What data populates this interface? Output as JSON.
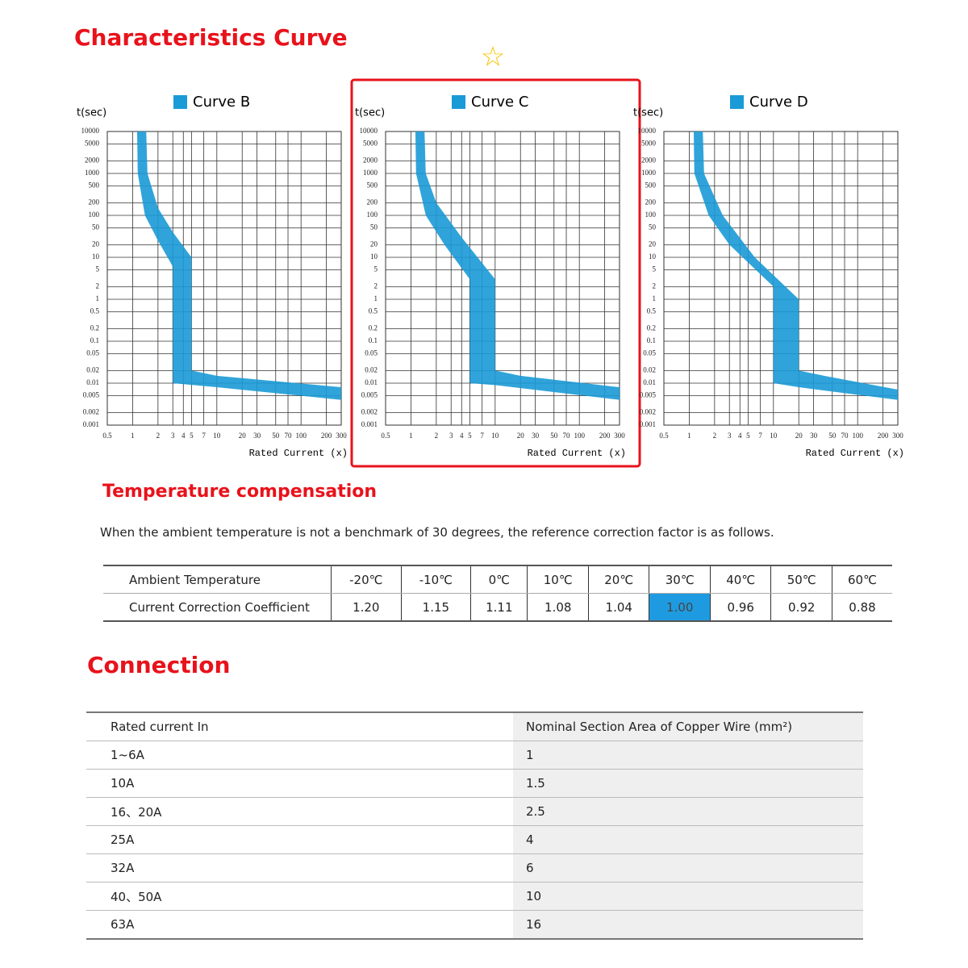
{
  "curves_section": {
    "title": "Characteristics Curve",
    "charts": [
      {
        "type": "area",
        "legend": "Curve B",
        "color": "#1a9ad6",
        "y_label": "t(sec)",
        "x_label": "Rated Current (x)",
        "log_x": true,
        "log_y": true,
        "highlighted": false,
        "xlim": [
          0.5,
          300
        ],
        "ylim": [
          0.001,
          10000
        ],
        "xticks": [
          0.5,
          1,
          2,
          3,
          4,
          5,
          7,
          10,
          20,
          30,
          50,
          70,
          100,
          200,
          300
        ],
        "yticks": [
          10000,
          5000,
          2000,
          1000,
          500,
          200,
          100,
          50,
          20,
          10,
          5,
          2,
          1,
          0.5,
          0.2,
          0.1,
          0.05,
          0.02,
          0.01,
          0.005,
          0.002,
          0.001
        ],
        "lower_edge": {
          "x": [
            1.13,
            1.15,
            1.4,
            2,
            3,
            3,
            10,
            300
          ],
          "t": [
            10000,
            1000,
            100,
            25,
            6,
            0.01,
            0.008,
            0.004
          ]
        },
        "upper_edge": {
          "x": [
            1.45,
            1.5,
            2,
            3,
            5,
            5,
            10,
            300
          ],
          "t": [
            10000,
            1000,
            150,
            40,
            10,
            0.02,
            0.015,
            0.008
          ]
        }
      },
      {
        "type": "area",
        "legend": "Curve C",
        "color": "#1a9ad6",
        "y_label": "t(sec)",
        "x_label": "Rated Current (x)",
        "log_x": true,
        "log_y": true,
        "highlighted": true,
        "xlim": [
          0.5,
          300
        ],
        "ylim": [
          0.001,
          10000
        ],
        "xticks": [
          0.5,
          1,
          2,
          3,
          4,
          5,
          7,
          10,
          20,
          30,
          50,
          70,
          100,
          200,
          300
        ],
        "yticks": [
          10000,
          5000,
          2000,
          1000,
          500,
          200,
          100,
          50,
          20,
          10,
          5,
          2,
          1,
          0.5,
          0.2,
          0.1,
          0.05,
          0.02,
          0.01,
          0.005,
          0.002,
          0.001
        ],
        "lower_edge": {
          "x": [
            1.13,
            1.15,
            1.5,
            2.5,
            5,
            5,
            10,
            300
          ],
          "t": [
            10000,
            1000,
            100,
            20,
            3,
            0.01,
            0.009,
            0.004
          ]
        },
        "upper_edge": {
          "x": [
            1.45,
            1.5,
            2,
            4,
            10,
            10,
            20,
            300
          ],
          "t": [
            10000,
            1000,
            200,
            30,
            3,
            0.02,
            0.015,
            0.008
          ]
        }
      },
      {
        "type": "area",
        "legend": "Curve D",
        "color": "#1a9ad6",
        "y_label": "t(sec)",
        "x_label": "Rated Current (x)",
        "log_x": true,
        "log_y": true,
        "highlighted": false,
        "xlim": [
          0.5,
          300
        ],
        "ylim": [
          0.001,
          10000
        ],
        "xticks": [
          0.5,
          1,
          2,
          3,
          4,
          5,
          7,
          10,
          20,
          30,
          50,
          70,
          100,
          200,
          300
        ],
        "yticks": [
          10000,
          5000,
          2000,
          1000,
          500,
          200,
          100,
          50,
          20,
          10,
          5,
          2,
          1,
          0.5,
          0.2,
          0.1,
          0.05,
          0.02,
          0.01,
          0.005,
          0.002,
          0.001
        ],
        "lower_edge": {
          "x": [
            1.13,
            1.15,
            1.7,
            3,
            10,
            10,
            20,
            300
          ],
          "t": [
            10000,
            1000,
            100,
            20,
            2,
            0.01,
            0.008,
            0.004
          ]
        },
        "upper_edge": {
          "x": [
            1.45,
            1.5,
            2.5,
            6,
            20,
            20,
            40,
            300
          ],
          "t": [
            10000,
            1000,
            100,
            10,
            1,
            0.02,
            0.015,
            0.007
          ]
        }
      }
    ]
  },
  "temperature": {
    "title": "Temperature compensation",
    "note": "When the ambient temperature is not a benchmark of 30 degrees, the reference correction factor is as follows.",
    "table": {
      "rows": [
        [
          "Ambient Temperature",
          "-20℃",
          "-10℃",
          "0℃",
          "10℃",
          "20℃",
          "30℃",
          "40℃",
          "50℃",
          "60℃"
        ],
        [
          "Current Correction Coefficient",
          "1.20",
          "1.15",
          "1.11",
          "1.08",
          "1.04",
          "1.00",
          "0.96",
          "0.92",
          "0.88"
        ]
      ]
    }
  },
  "connection": {
    "title": "Connection",
    "table": {
      "header": [
        "Rated current In",
        "Nominal Section Area of Copper Wire (mm²)"
      ],
      "rows": [
        [
          "1~6A",
          "1"
        ],
        [
          "10A",
          "1.5"
        ],
        [
          "16、20A",
          "2.5"
        ],
        [
          "25A",
          "4"
        ],
        [
          "32A",
          "6"
        ],
        [
          "40、50A",
          "10"
        ],
        [
          "63A",
          "16"
        ]
      ]
    }
  }
}
